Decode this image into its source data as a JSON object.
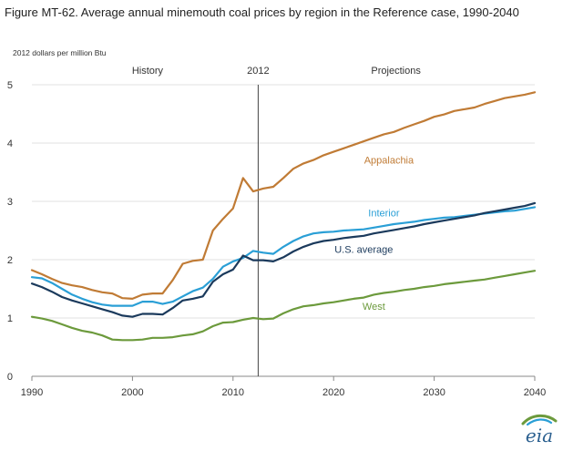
{
  "figure": {
    "title": "Figure MT-62. Average annual  minemouth coal prices by region in the Reference case, 1990-2040",
    "logo_text": "eia"
  },
  "chart_data": {
    "type": "line",
    "ylabel": "2012 dollars  per  million Btu",
    "xlim": [
      1990,
      2040
    ],
    "ylim": [
      0,
      5
    ],
    "x_ticks": [
      1990,
      2000,
      2010,
      2020,
      2030,
      2040
    ],
    "y_ticks": [
      0,
      1,
      2,
      3,
      4,
      5
    ],
    "grid": "horizontal",
    "annotations": {
      "history": "History",
      "divider_year": 2012.5,
      "divider_label": "2012",
      "projections": "Projections"
    },
    "series": [
      {
        "name": "Appalachia",
        "color": "#c07b35",
        "x": [
          1990,
          1991,
          1992,
          1993,
          1994,
          1995,
          1996,
          1997,
          1998,
          1999,
          2000,
          2001,
          2002,
          2003,
          2004,
          2005,
          2006,
          2007,
          2008,
          2009,
          2010,
          2011,
          2012,
          2013,
          2014,
          2015,
          2016,
          2017,
          2018,
          2019,
          2020,
          2021,
          2022,
          2023,
          2024,
          2025,
          2026,
          2027,
          2028,
          2029,
          2030,
          2031,
          2032,
          2033,
          2034,
          2035,
          2036,
          2037,
          2038,
          2039,
          2040
        ],
        "values": [
          1.82,
          1.75,
          1.67,
          1.6,
          1.56,
          1.53,
          1.48,
          1.44,
          1.42,
          1.34,
          1.33,
          1.4,
          1.42,
          1.42,
          1.65,
          1.93,
          1.98,
          2.0,
          2.5,
          2.7,
          2.88,
          3.4,
          3.17,
          3.22,
          3.25,
          3.4,
          3.56,
          3.65,
          3.71,
          3.79,
          3.85,
          3.91,
          3.97,
          4.03,
          4.09,
          4.15,
          4.19,
          4.26,
          4.32,
          4.38,
          4.45,
          4.49,
          4.55,
          4.58,
          4.61,
          4.67,
          4.72,
          4.77,
          4.8,
          4.83,
          4.87
        ]
      },
      {
        "name": "Interior",
        "color": "#2a9fd6",
        "x": [
          1990,
          1991,
          1992,
          1993,
          1994,
          1995,
          1996,
          1997,
          1998,
          1999,
          2000,
          2001,
          2002,
          2003,
          2004,
          2005,
          2006,
          2007,
          2008,
          2009,
          2010,
          2011,
          2012,
          2013,
          2014,
          2015,
          2016,
          2017,
          2018,
          2019,
          2020,
          2021,
          2022,
          2023,
          2024,
          2025,
          2026,
          2027,
          2028,
          2029,
          2030,
          2031,
          2032,
          2033,
          2034,
          2035,
          2036,
          2037,
          2038,
          2039,
          2040
        ],
        "values": [
          1.7,
          1.68,
          1.6,
          1.5,
          1.4,
          1.33,
          1.27,
          1.23,
          1.21,
          1.21,
          1.21,
          1.28,
          1.28,
          1.24,
          1.28,
          1.37,
          1.46,
          1.52,
          1.67,
          1.88,
          1.97,
          2.03,
          2.15,
          2.12,
          2.1,
          2.22,
          2.32,
          2.4,
          2.45,
          2.47,
          2.48,
          2.5,
          2.51,
          2.52,
          2.55,
          2.58,
          2.61,
          2.63,
          2.65,
          2.68,
          2.7,
          2.72,
          2.73,
          2.75,
          2.77,
          2.79,
          2.81,
          2.83,
          2.84,
          2.87,
          2.9
        ]
      },
      {
        "name": "U.S. average",
        "color": "#1b3a5c",
        "x": [
          1990,
          1991,
          1992,
          1993,
          1994,
          1995,
          1996,
          1997,
          1998,
          1999,
          2000,
          2001,
          2002,
          2003,
          2004,
          2005,
          2006,
          2007,
          2008,
          2009,
          2010,
          2011,
          2012,
          2013,
          2014,
          2015,
          2016,
          2017,
          2018,
          2019,
          2020,
          2021,
          2022,
          2023,
          2024,
          2025,
          2026,
          2027,
          2028,
          2029,
          2030,
          2031,
          2032,
          2033,
          2034,
          2035,
          2036,
          2037,
          2038,
          2039,
          2040
        ],
        "values": [
          1.59,
          1.53,
          1.45,
          1.36,
          1.3,
          1.25,
          1.2,
          1.15,
          1.1,
          1.04,
          1.02,
          1.07,
          1.07,
          1.06,
          1.17,
          1.3,
          1.33,
          1.37,
          1.62,
          1.75,
          1.83,
          2.07,
          1.99,
          1.99,
          1.97,
          2.04,
          2.14,
          2.22,
          2.28,
          2.32,
          2.34,
          2.37,
          2.39,
          2.41,
          2.45,
          2.48,
          2.51,
          2.54,
          2.57,
          2.61,
          2.64,
          2.67,
          2.7,
          2.73,
          2.76,
          2.8,
          2.83,
          2.86,
          2.89,
          2.92,
          2.97
        ]
      },
      {
        "name": "West",
        "color": "#6c9a3c",
        "x": [
          1990,
          1991,
          1992,
          1993,
          1994,
          1995,
          1996,
          1997,
          1998,
          1999,
          2000,
          2001,
          2002,
          2003,
          2004,
          2005,
          2006,
          2007,
          2008,
          2009,
          2010,
          2011,
          2012,
          2013,
          2014,
          2015,
          2016,
          2017,
          2018,
          2019,
          2020,
          2021,
          2022,
          2023,
          2024,
          2025,
          2026,
          2027,
          2028,
          2029,
          2030,
          2031,
          2032,
          2033,
          2034,
          2035,
          2036,
          2037,
          2038,
          2039,
          2040
        ],
        "values": [
          1.02,
          0.99,
          0.95,
          0.89,
          0.83,
          0.78,
          0.75,
          0.7,
          0.63,
          0.62,
          0.62,
          0.63,
          0.66,
          0.66,
          0.67,
          0.7,
          0.72,
          0.77,
          0.86,
          0.92,
          0.93,
          0.97,
          1.0,
          0.98,
          0.99,
          1.08,
          1.15,
          1.2,
          1.22,
          1.25,
          1.27,
          1.3,
          1.33,
          1.35,
          1.4,
          1.43,
          1.45,
          1.48,
          1.5,
          1.53,
          1.55,
          1.58,
          1.6,
          1.62,
          1.64,
          1.66,
          1.69,
          1.72,
          1.75,
          1.78,
          1.81
        ]
      }
    ]
  }
}
